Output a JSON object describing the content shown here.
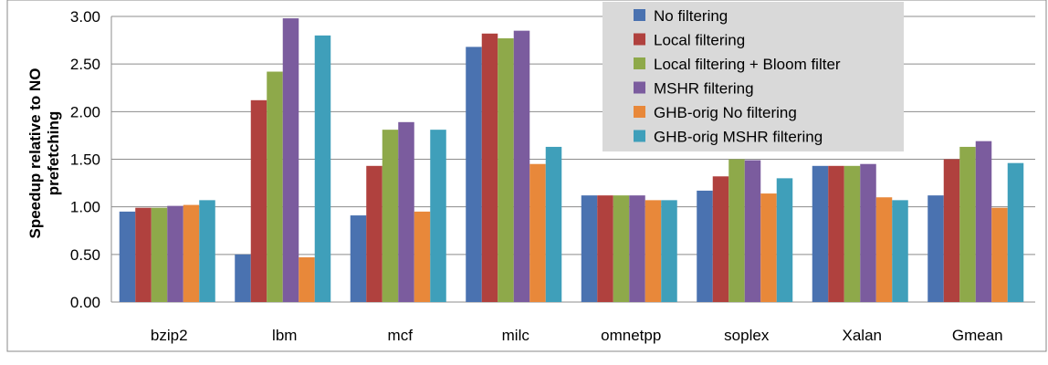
{
  "chart_data": {
    "type": "bar",
    "title": "",
    "xlabel": "",
    "ylabel": "Speedup relative to NO prefetching",
    "ylim": [
      0,
      3.0
    ],
    "yticks": [
      "0.00",
      "0.50",
      "1.00",
      "1.50",
      "2.00",
      "2.50",
      "3.00"
    ],
    "grid": true,
    "legend_position": "top-right",
    "categories": [
      "bzip2",
      "lbm",
      "mcf",
      "milc",
      "omnetpp",
      "soplex",
      "Xalan",
      "Gmean"
    ],
    "series": [
      {
        "name": "No filtering",
        "color": "#4a72b0",
        "values": [
          0.95,
          0.5,
          0.91,
          2.68,
          1.12,
          1.17,
          1.43,
          1.12
        ]
      },
      {
        "name": "Local filtering",
        "color": "#b0413e",
        "values": [
          0.99,
          2.12,
          1.43,
          2.82,
          1.12,
          1.32,
          1.43,
          1.5
        ]
      },
      {
        "name": "Local filtering + Bloom filter",
        "color": "#8ea94a",
        "values": [
          0.99,
          2.42,
          1.81,
          2.77,
          1.12,
          1.5,
          1.43,
          1.63
        ]
      },
      {
        "name": "MSHR filtering",
        "color": "#7b5c9e",
        "values": [
          1.01,
          2.98,
          1.89,
          2.85,
          1.12,
          1.49,
          1.45,
          1.69
        ]
      },
      {
        "name": "GHB-orig No filtering",
        "color": "#e8883a",
        "values": [
          1.02,
          0.47,
          0.95,
          1.45,
          1.07,
          1.14,
          1.1,
          0.99
        ]
      },
      {
        "name": "GHB-orig MSHR filtering",
        "color": "#3f9fba",
        "values": [
          1.07,
          2.8,
          1.81,
          1.63,
          1.07,
          1.3,
          1.07,
          1.46
        ]
      }
    ]
  }
}
